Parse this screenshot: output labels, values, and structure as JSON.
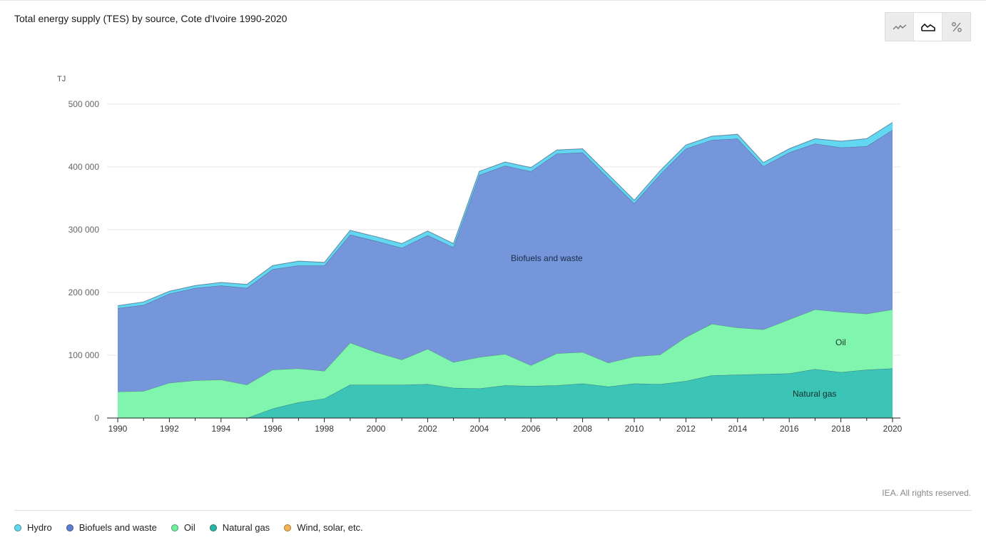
{
  "title": "Total energy supply (TES) by source, Cote d'Ivoire 1990-2020",
  "toggles": [
    {
      "icon": "line-chart-icon",
      "active": false
    },
    {
      "icon": "area-chart-icon",
      "active": true
    },
    {
      "icon": "percent-icon",
      "active": false
    }
  ],
  "credit": "IEA. All rights reserved.",
  "chart_data": {
    "type": "area",
    "stacked": true,
    "unit_label": "TJ",
    "x": [
      1990,
      1991,
      1992,
      1993,
      1994,
      1995,
      1996,
      1997,
      1998,
      1999,
      2000,
      2001,
      2002,
      2003,
      2004,
      2005,
      2006,
      2007,
      2008,
      2009,
      2010,
      2011,
      2012,
      2013,
      2014,
      2015,
      2016,
      2017,
      2018,
      2019,
      2020
    ],
    "x_ticks": [
      "1990",
      "1992",
      "1994",
      "1996",
      "1998",
      "2000",
      "2002",
      "2004",
      "2006",
      "2008",
      "2010",
      "2012",
      "2014",
      "2016",
      "2018",
      "2020"
    ],
    "y_ticks": [
      "0",
      "100 000",
      "200 000",
      "300 000",
      "400 000",
      "500 000"
    ],
    "ylim": [
      0,
      500000
    ],
    "grid": true,
    "legend_position": "bottom-left",
    "series": [
      {
        "name": "Natural gas",
        "color": "#3cc4b6",
        "values": [
          0,
          0,
          0,
          0,
          0,
          0,
          15000,
          25000,
          31000,
          53000,
          53000,
          53000,
          54000,
          48000,
          47000,
          52000,
          51000,
          52000,
          55000,
          50000,
          55000,
          54000,
          59000,
          68000,
          69000,
          70000,
          71000,
          78000,
          73000,
          77000,
          79000
        ]
      },
      {
        "name": "Oil",
        "color": "#7ff5ad",
        "values": [
          42000,
          43000,
          56000,
          60000,
          61000,
          53000,
          62000,
          54000,
          44000,
          67000,
          52000,
          40000,
          56000,
          41000,
          50000,
          50000,
          33000,
          51000,
          50000,
          38000,
          43000,
          47000,
          70000,
          82000,
          75000,
          71000,
          86000,
          95000,
          96000,
          89000,
          94000
        ]
      },
      {
        "name": "Biofuels and waste",
        "color": "#7596db",
        "values": [
          133000,
          137000,
          142000,
          147000,
          150000,
          154000,
          160000,
          164000,
          168000,
          172000,
          177000,
          178000,
          181000,
          183000,
          290000,
          300000,
          309000,
          318000,
          318000,
          294000,
          244000,
          287000,
          300000,
          293000,
          301000,
          260000,
          266000,
          264000,
          262000,
          267000,
          286000
        ]
      },
      {
        "name": "Hydro",
        "color": "#63d6f2",
        "values": [
          4000,
          5000,
          4000,
          4000,
          5000,
          6000,
          6000,
          7000,
          5000,
          7000,
          7000,
          7000,
          7000,
          6000,
          6000,
          6000,
          6000,
          6000,
          6000,
          6000,
          5000,
          6000,
          6000,
          6000,
          7000,
          6000,
          6000,
          8000,
          10000,
          12000,
          12000
        ]
      },
      {
        "name": "Wind, solar, etc.",
        "color": "#f5b553",
        "values": [
          0,
          0,
          0,
          0,
          0,
          0,
          0,
          0,
          0,
          0,
          0,
          0,
          0,
          0,
          0,
          0,
          0,
          0,
          0,
          0,
          0,
          0,
          0,
          0,
          0,
          0,
          0,
          0,
          0,
          0,
          0
        ]
      }
    ],
    "in_chart_labels": [
      "Biofuels and waste",
      "Oil",
      "Natural gas"
    ]
  },
  "legend": [
    {
      "label": "Hydro",
      "color": "#63d6f2"
    },
    {
      "label": "Biofuels and waste",
      "color": "#5b7fd1"
    },
    {
      "label": "Oil",
      "color": "#6ef0a0"
    },
    {
      "label": "Natural gas",
      "color": "#2bb7a8"
    },
    {
      "label": "Wind, solar, etc.",
      "color": "#f5b553"
    }
  ]
}
